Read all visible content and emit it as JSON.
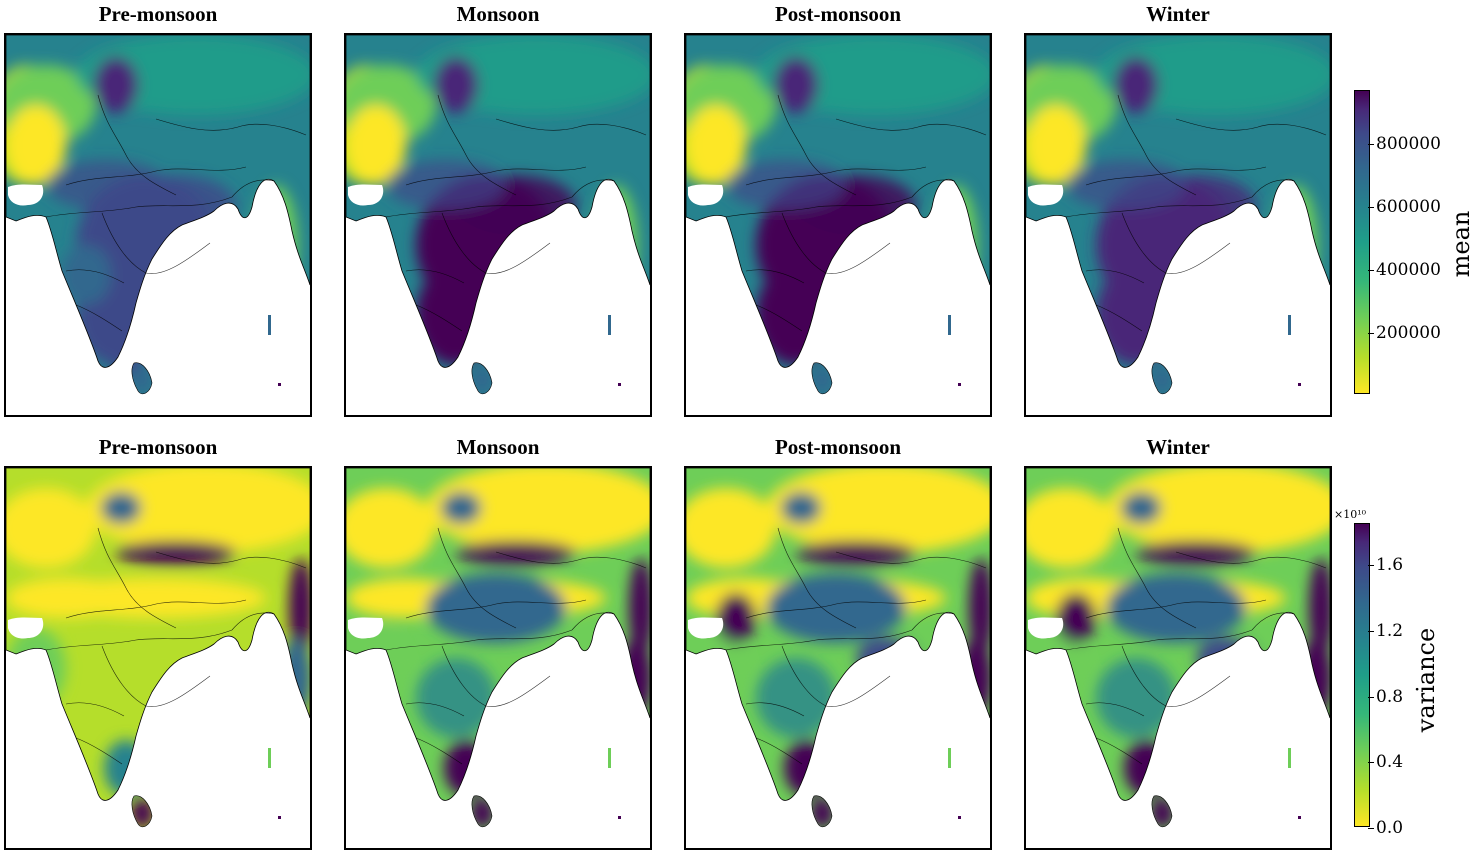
{
  "rows": [
    {
      "stat": "mean",
      "panels": [
        {
          "title": "Pre-monsoon"
        },
        {
          "title": "Monsoon"
        },
        {
          "title": "Post-monsoon"
        },
        {
          "title": "Winter"
        }
      ]
    },
    {
      "stat": "variance",
      "panels": [
        {
          "title": "Pre-monsoon"
        },
        {
          "title": "Monsoon"
        },
        {
          "title": "Post-monsoon"
        },
        {
          "title": "Winter"
        }
      ]
    }
  ],
  "colorbars": {
    "mean": {
      "label": "mean",
      "ticks": [
        "800000",
        "600000",
        "400000",
        "200000"
      ],
      "tick_values": [
        800000,
        600000,
        400000,
        200000
      ],
      "range": [
        0,
        960000
      ],
      "colormap": "viridis_r"
    },
    "variance": {
      "label": "variance",
      "multiplier": "×10¹⁰",
      "ticks": [
        "1.6",
        "1.2",
        "0.8",
        "0.4",
        "0.0"
      ],
      "tick_values": [
        1.6,
        1.2,
        0.8,
        0.4,
        0.0
      ],
      "range": [
        0.0,
        1.85
      ],
      "colormap": "viridis_r"
    }
  },
  "chart_data": {
    "type": "heatmap",
    "description_type": "geographic raster small multiples",
    "rows": 2,
    "cols": 4,
    "grid": false,
    "colormap_colors": [
      "#fde725",
      "#6ece58",
      "#1f9e89",
      "#31688e",
      "#440154"
    ],
    "background_color": "#ffffff",
    "border_color": "#000000"
  }
}
